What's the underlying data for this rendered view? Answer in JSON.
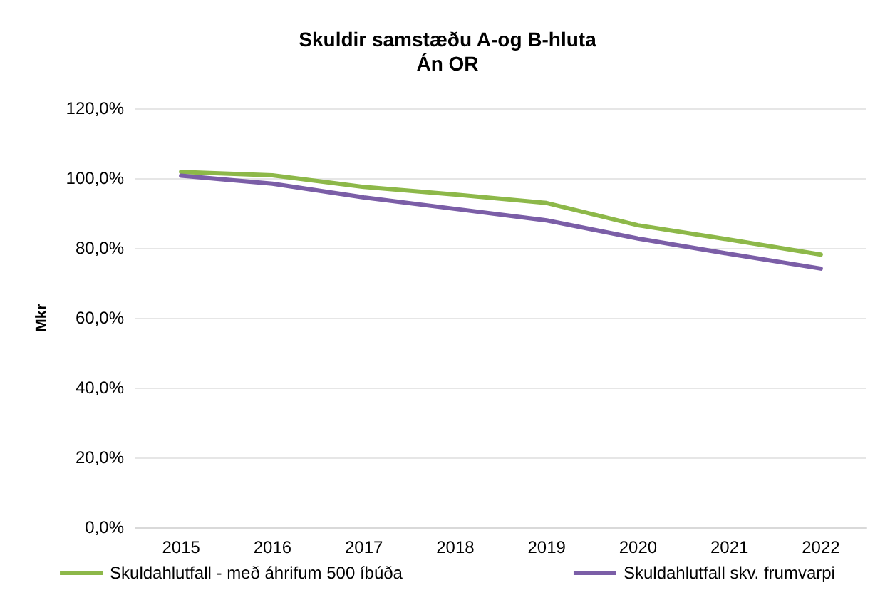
{
  "chart_data": {
    "type": "line",
    "title": "Skuldir samstæðu A-og B-hluta\nÁn OR",
    "ylabel": "Mkr",
    "categories": [
      "2015",
      "2016",
      "2017",
      "2018",
      "2019",
      "2020",
      "2021",
      "2022"
    ],
    "series": [
      {
        "name": "Skuldahlutfall - með áhrifum 500 íbúða",
        "color": "#8db849",
        "values": [
          101.8,
          100.8,
          97.5,
          95.3,
          92.9,
          86.5,
          82.4,
          78.1
        ]
      },
      {
        "name": "Skuldahlutfall skv. frumvarpi",
        "color": "#7b5ea7",
        "values": [
          100.7,
          98.4,
          94.5,
          91.2,
          87.9,
          82.7,
          78.3,
          74.1
        ]
      }
    ],
    "ylim": [
      0,
      120
    ],
    "yticks": [
      {
        "value": 0,
        "label": "0,0%"
      },
      {
        "value": 20,
        "label": "20,0%"
      },
      {
        "value": 40,
        "label": "40,0%"
      },
      {
        "value": 60,
        "label": "60,0%"
      },
      {
        "value": 80,
        "label": "80,0%"
      },
      {
        "value": 100,
        "label": "100,0%"
      },
      {
        "value": 120,
        "label": "120,0%"
      }
    ],
    "grid": "y",
    "legend": "bottom",
    "marker": "none",
    "line_style": "solid"
  }
}
